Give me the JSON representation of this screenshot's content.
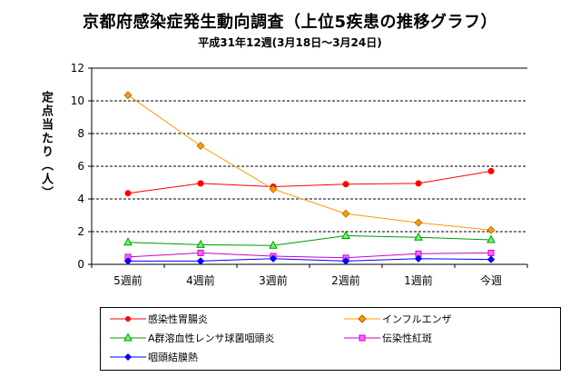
{
  "chart_data": {
    "type": "line",
    "title": "京都府感染症発生動向調査（上位5疾患の推移グラフ）",
    "subtitle": "平成31年12週(3月18日～3月24日)",
    "ylabel": "定点当たり（人）",
    "xlabel": "",
    "categories": [
      "5週前",
      "4週前",
      "3週前",
      "2週前",
      "1週前",
      "今週"
    ],
    "ylim": [
      0,
      12
    ],
    "yticks": [
      0,
      2,
      4,
      6,
      8,
      10,
      12
    ],
    "grid": true,
    "legend_position": "bottom",
    "series": [
      {
        "name": "感染性胃腸炎",
        "color": "#ff0000",
        "marker": "circle",
        "values": [
          4.35,
          4.95,
          4.75,
          4.9,
          4.95,
          5.7
        ]
      },
      {
        "name": "インフルエンザ",
        "color": "#ff9900",
        "marker": "diamond",
        "values": [
          10.35,
          7.25,
          4.6,
          3.1,
          2.55,
          2.1
        ]
      },
      {
        "name": "A群溶血性レンサ球菌咽頭炎",
        "color": "#009900",
        "marker": "triangle",
        "values": [
          1.35,
          1.2,
          1.15,
          1.75,
          1.65,
          1.5
        ]
      },
      {
        "name": "伝染性紅斑",
        "color": "#cc00cc",
        "marker": "square",
        "values": [
          0.45,
          0.7,
          0.5,
          0.4,
          0.65,
          0.7
        ]
      },
      {
        "name": "咽頭結膜熱",
        "color": "#0000ff",
        "marker": "diamond-small",
        "values": [
          0.2,
          0.2,
          0.35,
          0.2,
          0.35,
          0.3
        ]
      }
    ]
  }
}
